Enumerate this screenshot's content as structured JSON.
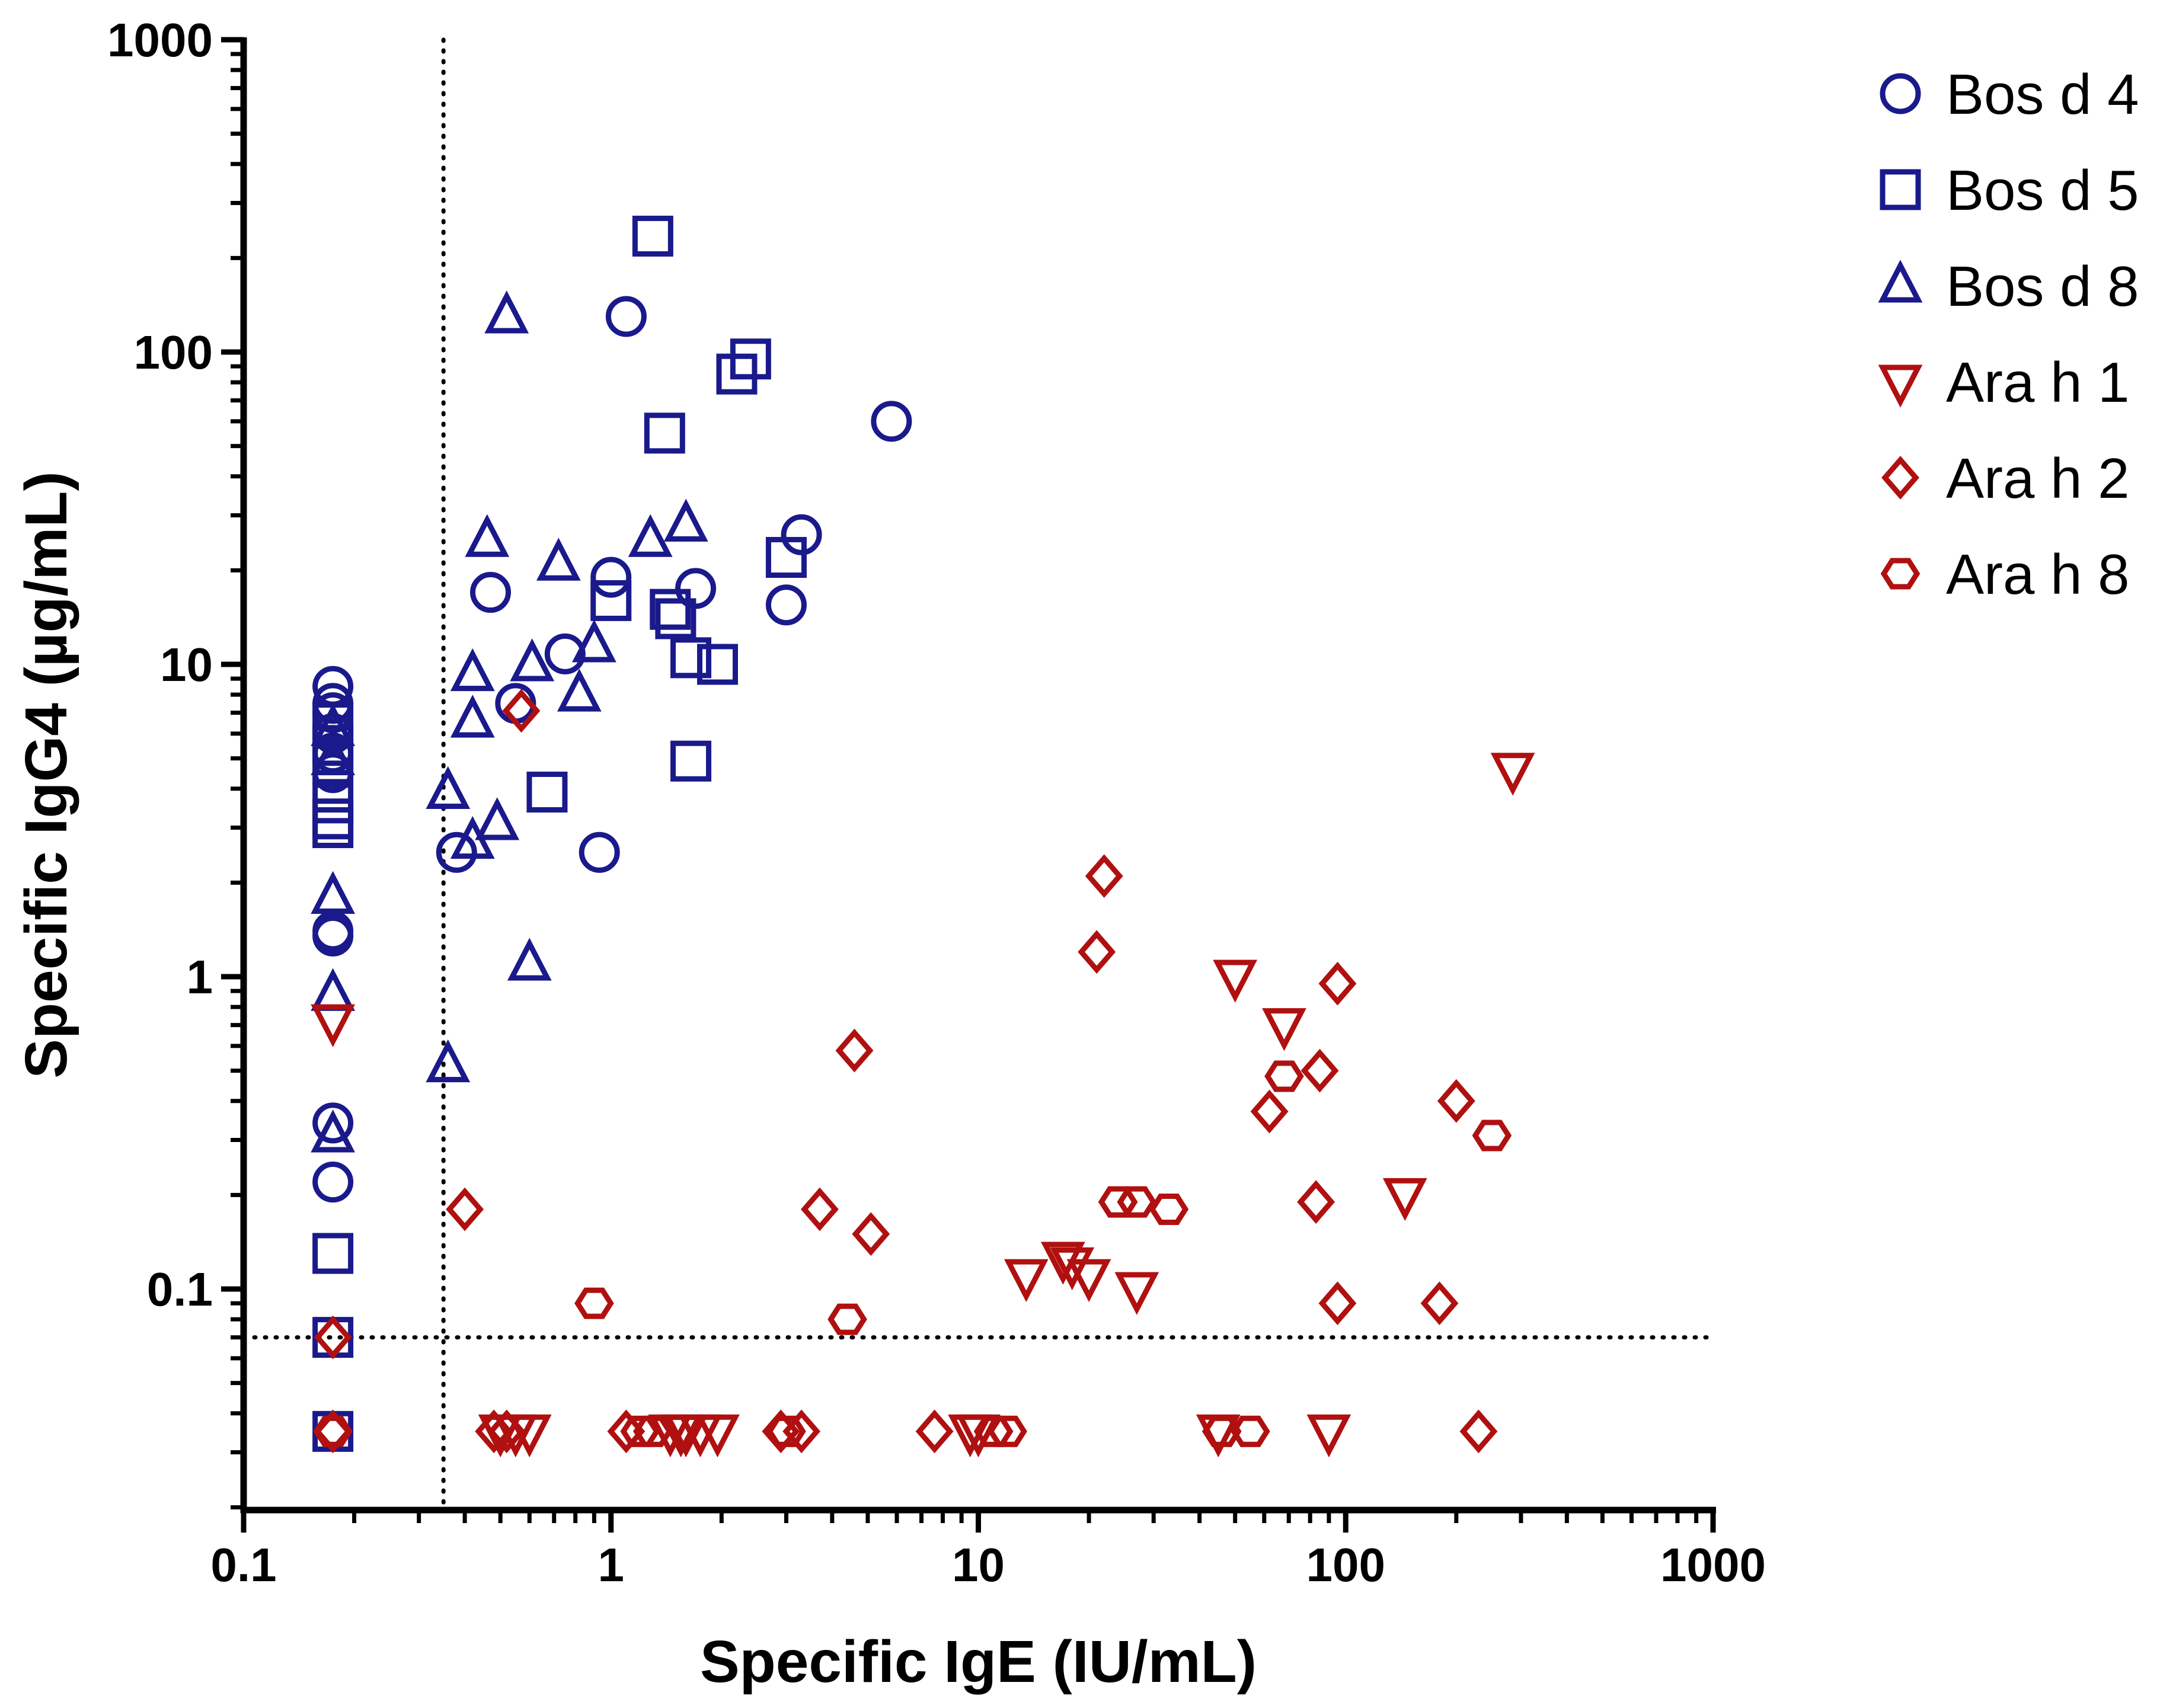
{
  "chart_data": {
    "type": "scatter",
    "xscale": "log",
    "yscale": "log",
    "xlabel": "Specific IgE (IU/mL)",
    "ylabel": "Specific IgG4 (µg/mL)",
    "xlim": [
      0.1,
      1000
    ],
    "ylim": [
      0.02,
      1000
    ],
    "xticks": [
      0.1,
      1,
      10,
      100,
      1000
    ],
    "xtick_labels": [
      "0.1",
      "1",
      "10",
      "100",
      "1000"
    ],
    "yticks": [
      0.1,
      1,
      10,
      100,
      1000
    ],
    "ytick_labels": [
      "0.1",
      "1",
      "10",
      "100",
      "1000"
    ],
    "cutoff_lines": {
      "x": 0.35,
      "y": 0.07
    },
    "legend_position": "top-right",
    "series": [
      {
        "name": "Bos d 4",
        "marker": "circle",
        "color": "#1a1a8c",
        "points": [
          [
            0.175,
            8.5
          ],
          [
            0.175,
            7.5
          ],
          [
            0.175,
            7
          ],
          [
            0.175,
            6
          ],
          [
            0.175,
            5.2
          ],
          [
            0.175,
            4.5
          ],
          [
            0.175,
            1.4
          ],
          [
            0.175,
            1.35
          ],
          [
            0.175,
            0.34
          ],
          [
            0.175,
            0.22
          ],
          [
            1.1,
            130
          ],
          [
            5.8,
            60
          ],
          [
            3.3,
            26
          ],
          [
            0.47,
            17
          ],
          [
            1,
            19
          ],
          [
            1.7,
            17.5
          ],
          [
            3,
            15.5
          ],
          [
            0.75,
            10.8
          ],
          [
            0.55,
            7.5
          ],
          [
            0.38,
            2.5
          ],
          [
            0.93,
            2.5
          ]
        ]
      },
      {
        "name": "Bos d 5",
        "marker": "square",
        "color": "#1a1a8c",
        "points": [
          [
            1.3,
            235
          ],
          [
            2.4,
            95
          ],
          [
            2.2,
            85
          ],
          [
            1.4,
            55
          ],
          [
            3,
            22
          ],
          [
            1,
            16
          ],
          [
            1.45,
            15
          ],
          [
            1.5,
            14
          ],
          [
            1.65,
            10.5
          ],
          [
            1.95,
            10
          ],
          [
            1.65,
            4.9
          ],
          [
            0.67,
            3.9
          ],
          [
            0.175,
            6.5
          ],
          [
            0.175,
            5.5
          ],
          [
            0.175,
            4.8
          ],
          [
            0.175,
            3.6
          ],
          [
            0.175,
            3.2
          ],
          [
            0.175,
            3
          ],
          [
            0.175,
            0.13
          ],
          [
            0.175,
            0.07
          ],
          [
            0.175,
            0.035
          ]
        ]
      },
      {
        "name": "Bos d 8",
        "marker": "triangle-up",
        "color": "#1a1a8c",
        "points": [
          [
            0.52,
            130
          ],
          [
            0.46,
            25
          ],
          [
            1.28,
            25
          ],
          [
            1.6,
            28
          ],
          [
            0.72,
            21
          ],
          [
            0.42,
            9.3
          ],
          [
            0.61,
            10
          ],
          [
            0.9,
            11.5
          ],
          [
            0.82,
            8
          ],
          [
            0.42,
            6.6
          ],
          [
            0.36,
            3.9
          ],
          [
            0.49,
            3.1
          ],
          [
            0.42,
            2.7
          ],
          [
            0.6,
            1.1
          ],
          [
            0.36,
            0.52
          ],
          [
            0.175,
            6.2
          ],
          [
            0.175,
            5
          ],
          [
            0.175,
            1.8
          ],
          [
            0.175,
            0.88
          ],
          [
            0.175,
            0.31
          ]
        ]
      },
      {
        "name": "Ara h 1",
        "marker": "triangle-down",
        "color": "#b01010",
        "points": [
          [
            285,
            4.6
          ],
          [
            50,
            1
          ],
          [
            68,
            0.7
          ],
          [
            145,
            0.2
          ],
          [
            13.5,
            0.11
          ],
          [
            17,
            0.125
          ],
          [
            18,
            0.12
          ],
          [
            20,
            0.11
          ],
          [
            27,
            0.1
          ],
          [
            0.175,
            0.72
          ],
          [
            0.5,
            0.035
          ],
          [
            0.55,
            0.035
          ],
          [
            0.6,
            0.035
          ],
          [
            1.45,
            0.035
          ],
          [
            1.55,
            0.035
          ],
          [
            1.6,
            0.035
          ],
          [
            1.75,
            0.035
          ],
          [
            1.95,
            0.035
          ],
          [
            9.5,
            0.035
          ],
          [
            10,
            0.035
          ],
          [
            45,
            0.035
          ],
          [
            90,
            0.035
          ]
        ]
      },
      {
        "name": "Ara h 2",
        "marker": "diamond",
        "color": "#b01010",
        "points": [
          [
            0.57,
            7.1
          ],
          [
            22,
            2.1
          ],
          [
            21,
            1.2
          ],
          [
            95,
            0.95
          ],
          [
            4.6,
            0.58
          ],
          [
            85,
            0.5
          ],
          [
            62,
            0.37
          ],
          [
            200,
            0.4
          ],
          [
            3.7,
            0.18
          ],
          [
            5.1,
            0.15
          ],
          [
            0.4,
            0.18
          ],
          [
            83,
            0.19
          ],
          [
            95,
            0.09
          ],
          [
            180,
            0.09
          ],
          [
            0.175,
            0.07
          ],
          [
            0.175,
            0.035
          ],
          [
            0.48,
            0.035
          ],
          [
            0.52,
            0.035
          ],
          [
            1.1,
            0.035
          ],
          [
            2.9,
            0.035
          ],
          [
            3.3,
            0.035
          ],
          [
            7.6,
            0.035
          ],
          [
            230,
            0.035
          ]
        ]
      },
      {
        "name": "Ara h 8",
        "marker": "hexagon",
        "color": "#b01010",
        "points": [
          [
            250,
            0.31
          ],
          [
            68,
            0.48
          ],
          [
            24,
            0.19
          ],
          [
            27,
            0.19
          ],
          [
            33,
            0.18
          ],
          [
            0.9,
            0.09
          ],
          [
            4.4,
            0.08
          ],
          [
            0.175,
            0.035
          ],
          [
            1.2,
            0.035
          ],
          [
            1.3,
            0.035
          ],
          [
            3,
            0.035
          ],
          [
            11,
            0.035
          ],
          [
            12,
            0.035
          ],
          [
            46,
            0.035
          ],
          [
            55,
            0.035
          ]
        ]
      }
    ]
  }
}
